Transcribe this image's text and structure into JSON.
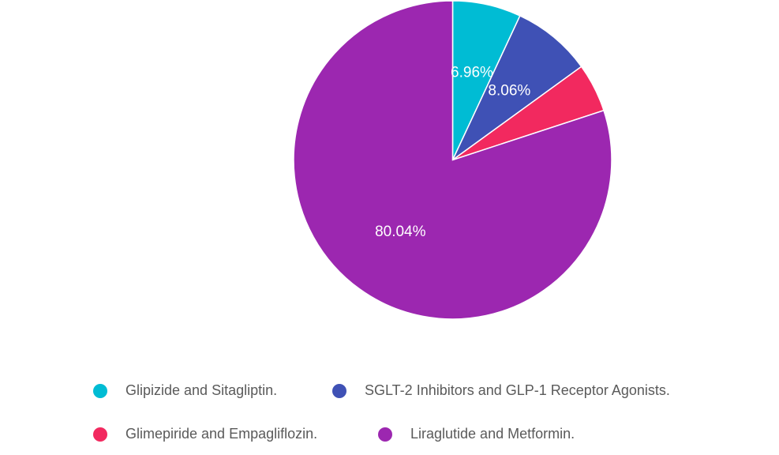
{
  "chart_data": {
    "type": "pie",
    "title": "",
    "categories": [
      "Glipizide and Sitagliptin.",
      "SGLT-2 Inhibitors and GLP-1 Receptor Agonists.",
      "Glimepiride and Empagliflozin.",
      "Liraglutide and Metformin."
    ],
    "values": [
      6.96,
      8.06,
      4.94,
      80.04
    ],
    "data_labels": [
      "6.96%",
      "8.06%",
      "",
      "80.04%"
    ],
    "colors": [
      "#00BCD4",
      "#3F51B5",
      "#F2295F",
      "#9C27B0"
    ],
    "legend_position": "bottom"
  }
}
